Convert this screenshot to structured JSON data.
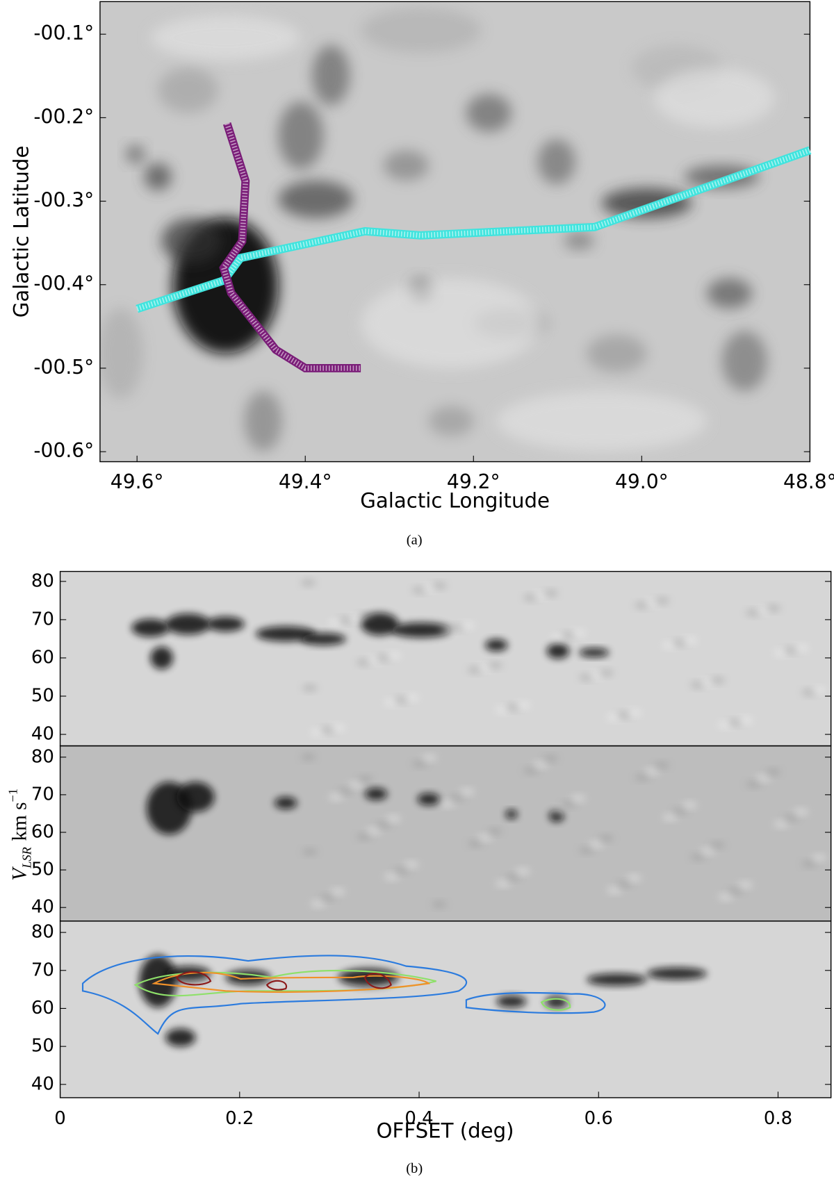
{
  "chart_data": [
    {
      "type": "line",
      "x_label": "Galactic Longitude",
      "y_label": "Galactic Latitude",
      "caption": "(a)",
      "xlim": [
        49.644,
        48.8
      ],
      "ylim": [
        -0.612,
        -0.061
      ],
      "xticks": [
        {
          "value": 49.6,
          "label": "49.6°"
        },
        {
          "value": 49.4,
          "label": "49.4°"
        },
        {
          "value": 49.2,
          "label": "49.2°"
        },
        {
          "value": 49.0,
          "label": "49.0°"
        },
        {
          "value": 48.8,
          "label": "48.8°"
        }
      ],
      "yticks": [
        {
          "value": -0.1,
          "label": "-00.1°"
        },
        {
          "value": -0.2,
          "label": "-00.2°"
        },
        {
          "value": -0.3,
          "label": "-00.3°"
        },
        {
          "value": -0.4,
          "label": "-00.4°"
        },
        {
          "value": -0.5,
          "label": "-00.5°"
        },
        {
          "value": -0.6,
          "label": "-00.6°"
        }
      ],
      "series": [
        {
          "color": "#40e4de",
          "x": [
            49.6,
            49.497,
            49.477,
            49.329,
            49.263,
            49.056,
            48.8
          ],
          "values": [
            -0.429,
            -0.395,
            -0.368,
            -0.336,
            -0.341,
            -0.331,
            -0.239
          ]
        },
        {
          "color": "#7a1d78",
          "x": [
            49.493,
            49.471,
            49.475,
            49.497,
            49.488,
            49.435,
            49.4,
            49.334
          ],
          "values": [
            -0.207,
            -0.276,
            -0.348,
            -0.38,
            -0.41,
            -0.478,
            -0.5,
            -0.5
          ]
        }
      ]
    },
    {
      "type": "image",
      "x_label": "OFFSET (deg)",
      "caption": "(b)",
      "y_label": {
        "main": "V",
        "subscript": "LSR",
        "unit": "km s",
        "superscript": "−1"
      },
      "xlim": [
        0,
        0.859
      ],
      "xticks": [
        0,
        0.2,
        0.4,
        0.6,
        0.8
      ],
      "panels": [
        {
          "ylim": [
            37.0,
            82.6
          ],
          "yticks": [
            40,
            50,
            60,
            70,
            80
          ]
        },
        {
          "ylim": [
            36.4,
            83.0
          ],
          "yticks": [
            40,
            50,
            60,
            70,
            80
          ]
        },
        {
          "ylim": [
            36.5,
            83.0
          ],
          "yticks": [
            40,
            50,
            60,
            70,
            80
          ]
        }
      ]
    }
  ]
}
